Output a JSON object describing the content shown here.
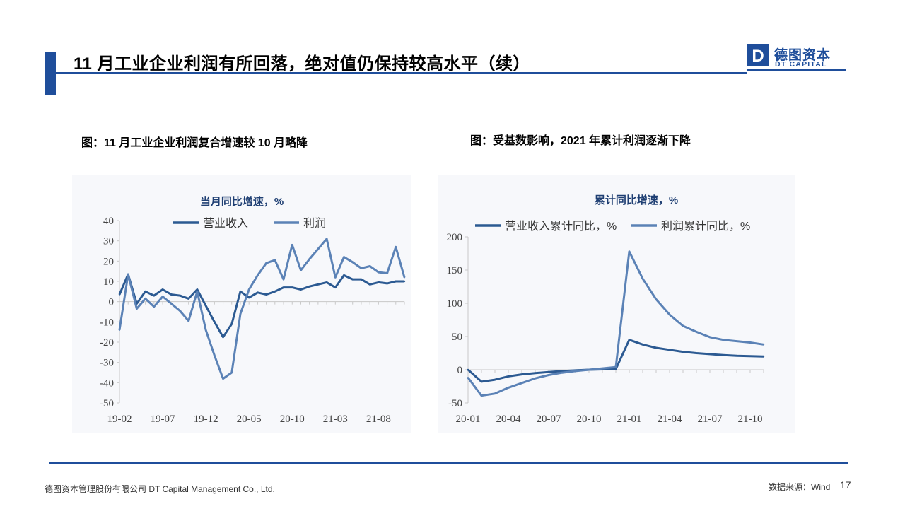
{
  "header": {
    "title": "11 月工业企业利润有所回落，绝对值仍保持较高水平（续）",
    "logo": {
      "cn": "德图资本",
      "en": "DT CAPITAL",
      "mark_letter": "D"
    }
  },
  "captions": {
    "left": "图：11 月工业企业利润复合增速较 10 月略降",
    "right": "图：受基数影响，2021 年累计利润逐渐下降"
  },
  "footer": {
    "company": "德图资本管理股份有限公司  DT Capital Management  Co., Ltd.",
    "source": "数据来源：Wind",
    "page": "17"
  },
  "colors": {
    "brand": "#1f4e9b",
    "series_dark": "#2c5a92",
    "series_light": "#5b82b6"
  },
  "chart_data": [
    {
      "type": "line",
      "title": "当月同比增速，%",
      "xlabel": "",
      "ylabel": "",
      "ylim": [
        -50,
        40
      ],
      "yticks": [
        40,
        30,
        20,
        10,
        0,
        -10,
        -20,
        -30,
        -40,
        -50
      ],
      "grid": false,
      "legend": "top",
      "x": [
        "19-02",
        "19-03",
        "19-04",
        "19-05",
        "19-06",
        "19-07",
        "19-08",
        "19-09",
        "19-10",
        "19-11",
        "19-12",
        "20-01",
        "20-02",
        "20-03",
        "20-04",
        "20-05",
        "20-06",
        "20-07",
        "20-08",
        "20-09",
        "20-10",
        "20-11",
        "20-12",
        "21-01",
        "21-02",
        "21-03",
        "21-04",
        "21-05",
        "21-06",
        "21-07",
        "21-08",
        "21-09",
        "21-10",
        "21-11"
      ],
      "xticks": [
        "19-02",
        "19-07",
        "19-12",
        "20-05",
        "20-10",
        "21-03",
        "21-08"
      ],
      "series": [
        {
          "name": "营业收入",
          "values": [
            3.5,
            13.5,
            -1,
            5,
            3,
            6,
            3.5,
            3,
            1.5,
            6,
            -2,
            -10,
            -17.5,
            -11,
            5,
            2,
            4.5,
            3.5,
            5,
            7,
            7,
            6,
            7.5,
            8.5,
            9.5,
            7,
            13,
            11,
            11,
            8.5,
            9.5,
            9,
            10,
            10
          ]
        },
        {
          "name": "利润",
          "values": [
            -14,
            13.5,
            -3.5,
            1.5,
            -2.5,
            2.5,
            -1,
            -4.5,
            -9.5,
            5,
            -14,
            -26.5,
            -38,
            -35,
            -6,
            6,
            13,
            19,
            20.5,
            11,
            28,
            15.5,
            21,
            26,
            31,
            12,
            22,
            19.5,
            16.5,
            17.5,
            14.5,
            14,
            27,
            12
          ]
        }
      ]
    },
    {
      "type": "line",
      "title": "累计同比增速，%",
      "xlabel": "",
      "ylabel": "",
      "ylim": [
        -50,
        200
      ],
      "yticks": [
        200,
        150,
        100,
        50,
        0,
        -50
      ],
      "grid": false,
      "legend": "top",
      "x": [
        "20-01",
        "20-02",
        "20-03",
        "20-04",
        "20-05",
        "20-06",
        "20-07",
        "20-08",
        "20-09",
        "20-10",
        "20-11",
        "20-12",
        "21-01",
        "21-02",
        "21-03",
        "21-04",
        "21-05",
        "21-06",
        "21-07",
        "21-08",
        "21-09",
        "21-10",
        "21-11"
      ],
      "xticks": [
        "20-01",
        "20-04",
        "20-07",
        "20-10",
        "21-01",
        "21-04",
        "21-07",
        "21-10"
      ],
      "series": [
        {
          "name": "营业收入累计同比，%",
          "values": [
            0,
            -18,
            -15,
            -10,
            -7,
            -5,
            -3.5,
            -2,
            -1,
            0,
            0.5,
            1,
            45,
            38,
            33,
            30,
            27,
            25,
            23.5,
            22,
            21,
            20.5,
            20
          ]
        },
        {
          "name": "利润累计同比，%",
          "values": [
            -12,
            -39,
            -36,
            -27,
            -20,
            -13,
            -8,
            -4.5,
            -2,
            0,
            2,
            4,
            178,
            137,
            106,
            83,
            66,
            57,
            49,
            45,
            43,
            41,
            38
          ]
        }
      ]
    }
  ]
}
